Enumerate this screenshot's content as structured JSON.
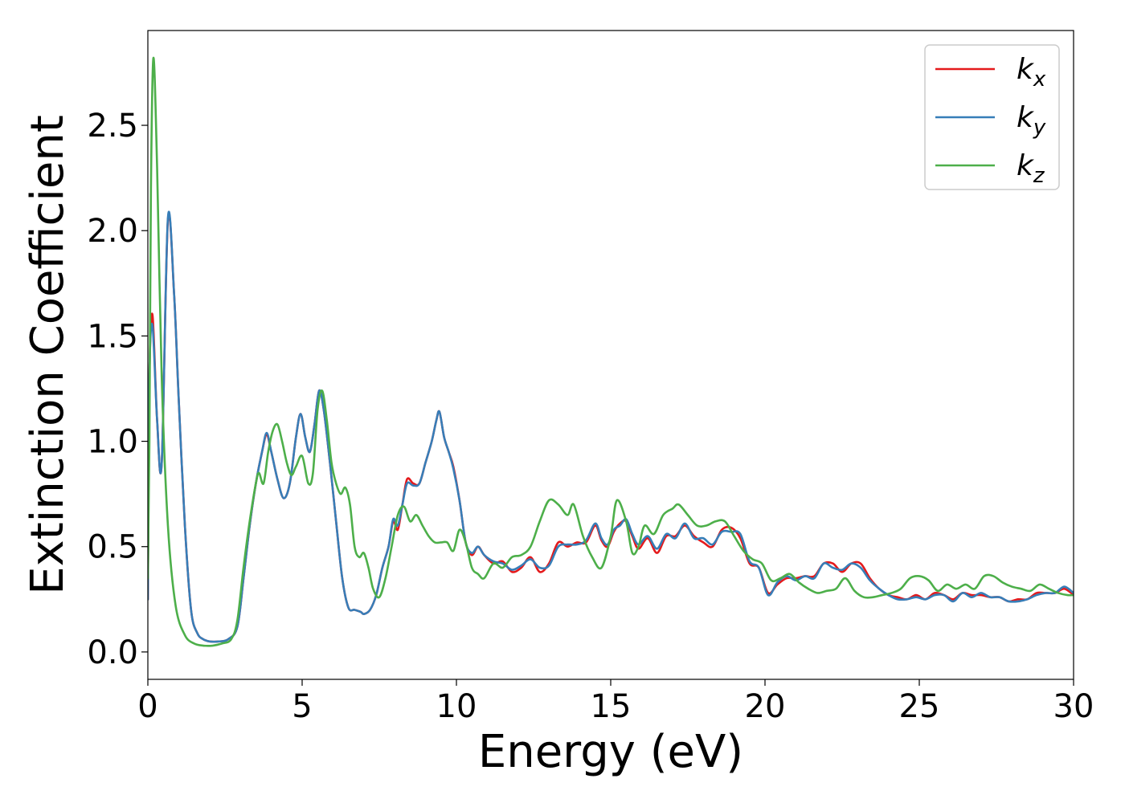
{
  "chart_data": {
    "type": "line",
    "title": "",
    "xlabel": "Energy (eV)",
    "ylabel": "Extinction Coefficient",
    "xlim": [
      0,
      30
    ],
    "ylim": [
      -0.13,
      2.95
    ],
    "xticks": [
      0,
      5,
      10,
      15,
      20,
      25,
      30
    ],
    "xtick_labels": [
      "0",
      "5",
      "10",
      "15",
      "20",
      "25",
      "30"
    ],
    "yticks": [
      0.0,
      0.5,
      1.0,
      1.5,
      2.0,
      2.5
    ],
    "ytick_labels": [
      "0.0",
      "0.5",
      "1.0",
      "1.5",
      "2.0",
      "2.5"
    ],
    "grid": false,
    "legend_position": "top-right",
    "series": [
      {
        "name": "k_x",
        "label_main": "k",
        "label_sub": "x",
        "color": "#e41a1c",
        "x": [
          0,
          0.05,
          0.15,
          0.3,
          0.45,
          0.65,
          0.85,
          1.0,
          1.2,
          1.4,
          1.6,
          1.8,
          2.0,
          2.3,
          2.6,
          2.9,
          3.1,
          3.3,
          3.5,
          3.7,
          3.85,
          4.0,
          4.2,
          4.4,
          4.6,
          4.8,
          4.95,
          5.1,
          5.25,
          5.4,
          5.55,
          5.7,
          5.9,
          6.1,
          6.3,
          6.5,
          6.7,
          6.9,
          7.0,
          7.2,
          7.4,
          7.6,
          7.8,
          7.95,
          8.1,
          8.25,
          8.4,
          8.6,
          8.8,
          9.0,
          9.2,
          9.35,
          9.45,
          9.6,
          9.75,
          9.9,
          10.1,
          10.3,
          10.5,
          10.7,
          10.9,
          11.2,
          11.5,
          11.8,
          12.1,
          12.4,
          12.7,
          13.0,
          13.3,
          13.6,
          13.9,
          14.2,
          14.5,
          14.7,
          14.9,
          15.1,
          15.3,
          15.5,
          15.7,
          15.9,
          16.2,
          16.5,
          16.8,
          17.1,
          17.4,
          17.7,
          18.0,
          18.3,
          18.6,
          18.9,
          19.2,
          19.5,
          19.8,
          20.1,
          20.4,
          20.7,
          21.0,
          21.3,
          21.6,
          21.9,
          22.2,
          22.5,
          22.8,
          23.1,
          23.4,
          23.7,
          24.0,
          24.3,
          24.6,
          24.9,
          25.2,
          25.5,
          25.8,
          26.1,
          26.4,
          26.7,
          27.0,
          27.3,
          27.6,
          27.9,
          28.2,
          28.5,
          28.8,
          29.1,
          29.4,
          29.7,
          30.0
        ],
        "y": [
          0.25,
          1.3,
          1.6,
          1.1,
          0.9,
          2.05,
          1.7,
          1.2,
          0.6,
          0.2,
          0.09,
          0.06,
          0.05,
          0.05,
          0.06,
          0.12,
          0.35,
          0.6,
          0.8,
          0.95,
          1.03,
          0.95,
          0.82,
          0.73,
          0.8,
          1.02,
          1.13,
          1.02,
          0.95,
          1.08,
          1.24,
          1.15,
          0.9,
          0.62,
          0.35,
          0.21,
          0.2,
          0.19,
          0.18,
          0.2,
          0.27,
          0.4,
          0.5,
          0.62,
          0.58,
          0.7,
          0.82,
          0.8,
          0.8,
          0.9,
          1.0,
          1.1,
          1.14,
          1.02,
          0.95,
          0.88,
          0.72,
          0.52,
          0.46,
          0.5,
          0.46,
          0.42,
          0.43,
          0.38,
          0.4,
          0.45,
          0.38,
          0.42,
          0.52,
          0.5,
          0.52,
          0.52,
          0.6,
          0.53,
          0.5,
          0.57,
          0.61,
          0.62,
          0.55,
          0.49,
          0.54,
          0.47,
          0.55,
          0.55,
          0.6,
          0.55,
          0.52,
          0.5,
          0.58,
          0.59,
          0.54,
          0.42,
          0.4,
          0.28,
          0.32,
          0.35,
          0.35,
          0.36,
          0.36,
          0.42,
          0.42,
          0.38,
          0.42,
          0.42,
          0.35,
          0.3,
          0.27,
          0.26,
          0.25,
          0.27,
          0.25,
          0.28,
          0.27,
          0.25,
          0.28,
          0.27,
          0.27,
          0.26,
          0.26,
          0.24,
          0.25,
          0.25,
          0.28,
          0.28,
          0.28,
          0.3,
          0.27
        ]
      },
      {
        "name": "k_y",
        "label_main": "k",
        "label_sub": "y",
        "color": "#377eb8",
        "x": [
          0,
          0.05,
          0.15,
          0.3,
          0.45,
          0.65,
          0.85,
          1.0,
          1.2,
          1.4,
          1.6,
          1.8,
          2.0,
          2.3,
          2.6,
          2.9,
          3.1,
          3.3,
          3.5,
          3.7,
          3.85,
          4.0,
          4.2,
          4.4,
          4.6,
          4.8,
          4.95,
          5.1,
          5.25,
          5.4,
          5.55,
          5.7,
          5.9,
          6.1,
          6.3,
          6.5,
          6.7,
          6.9,
          7.0,
          7.2,
          7.4,
          7.6,
          7.8,
          7.95,
          8.1,
          8.25,
          8.4,
          8.6,
          8.8,
          9.0,
          9.2,
          9.35,
          9.45,
          9.6,
          9.75,
          9.9,
          10.1,
          10.3,
          10.5,
          10.7,
          10.9,
          11.2,
          11.5,
          11.8,
          12.1,
          12.4,
          12.7,
          13.0,
          13.3,
          13.6,
          13.9,
          14.2,
          14.5,
          14.7,
          14.9,
          15.1,
          15.3,
          15.5,
          15.7,
          15.9,
          16.2,
          16.5,
          16.8,
          17.1,
          17.4,
          17.7,
          18.0,
          18.3,
          18.6,
          18.9,
          19.2,
          19.5,
          19.8,
          20.1,
          20.4,
          20.7,
          21.0,
          21.3,
          21.6,
          21.9,
          22.2,
          22.5,
          22.8,
          23.1,
          23.4,
          23.7,
          24.0,
          24.3,
          24.6,
          24.9,
          25.2,
          25.5,
          25.8,
          26.1,
          26.4,
          26.7,
          27.0,
          27.3,
          27.6,
          27.9,
          28.2,
          28.5,
          28.8,
          29.1,
          29.4,
          29.7,
          30.0
        ],
        "y": [
          0.25,
          1.3,
          1.55,
          1.1,
          0.9,
          2.06,
          1.7,
          1.2,
          0.6,
          0.2,
          0.09,
          0.06,
          0.05,
          0.05,
          0.06,
          0.12,
          0.35,
          0.6,
          0.8,
          0.95,
          1.04,
          0.95,
          0.82,
          0.73,
          0.8,
          1.02,
          1.13,
          1.02,
          0.95,
          1.08,
          1.24,
          1.15,
          0.9,
          0.62,
          0.35,
          0.21,
          0.2,
          0.19,
          0.18,
          0.2,
          0.27,
          0.4,
          0.5,
          0.63,
          0.6,
          0.7,
          0.8,
          0.79,
          0.8,
          0.9,
          1.0,
          1.1,
          1.14,
          1.02,
          0.95,
          0.87,
          0.72,
          0.52,
          0.47,
          0.5,
          0.46,
          0.43,
          0.42,
          0.39,
          0.41,
          0.44,
          0.4,
          0.41,
          0.5,
          0.51,
          0.51,
          0.53,
          0.61,
          0.54,
          0.51,
          0.58,
          0.6,
          0.63,
          0.56,
          0.51,
          0.55,
          0.49,
          0.56,
          0.54,
          0.61,
          0.54,
          0.54,
          0.51,
          0.57,
          0.57,
          0.56,
          0.43,
          0.4,
          0.27,
          0.33,
          0.36,
          0.34,
          0.36,
          0.35,
          0.42,
          0.4,
          0.39,
          0.42,
          0.4,
          0.34,
          0.3,
          0.27,
          0.25,
          0.25,
          0.26,
          0.25,
          0.27,
          0.27,
          0.24,
          0.28,
          0.26,
          0.28,
          0.26,
          0.26,
          0.24,
          0.24,
          0.25,
          0.27,
          0.28,
          0.28,
          0.31,
          0.28
        ]
      },
      {
        "name": "k_z",
        "label_main": "k",
        "label_sub": "z",
        "color": "#4daf4a",
        "x": [
          0,
          0.05,
          0.1,
          0.18,
          0.3,
          0.45,
          0.65,
          0.9,
          1.2,
          1.5,
          1.8,
          2.1,
          2.4,
          2.7,
          2.9,
          3.1,
          3.3,
          3.5,
          3.6,
          3.75,
          3.9,
          4.05,
          4.2,
          4.35,
          4.5,
          4.65,
          4.8,
          5.0,
          5.2,
          5.35,
          5.5,
          5.65,
          5.8,
          5.95,
          6.1,
          6.25,
          6.4,
          6.55,
          6.7,
          6.85,
          7.0,
          7.15,
          7.3,
          7.5,
          7.7,
          7.9,
          8.1,
          8.3,
          8.5,
          8.7,
          8.9,
          9.1,
          9.3,
          9.5,
          9.7,
          9.9,
          10.1,
          10.3,
          10.5,
          10.7,
          10.9,
          11.2,
          11.5,
          11.8,
          12.1,
          12.4,
          12.7,
          13.0,
          13.3,
          13.6,
          13.8,
          14.1,
          14.4,
          14.7,
          15.0,
          15.2,
          15.5,
          15.7,
          15.9,
          16.1,
          16.4,
          16.7,
          17.0,
          17.2,
          17.5,
          17.8,
          18.1,
          18.4,
          18.7,
          19.0,
          19.3,
          19.6,
          19.9,
          20.2,
          20.5,
          20.8,
          21.1,
          21.4,
          21.7,
          22.0,
          22.3,
          22.6,
          22.9,
          23.2,
          23.5,
          23.8,
          24.1,
          24.4,
          24.7,
          25.0,
          25.3,
          25.6,
          25.9,
          26.2,
          26.5,
          26.8,
          27.1,
          27.4,
          27.7,
          28.0,
          28.3,
          28.6,
          28.9,
          29.2,
          29.5,
          29.8,
          30.0
        ],
        "y": [
          0.35,
          1.0,
          2.2,
          2.82,
          2.3,
          1.3,
          0.6,
          0.22,
          0.08,
          0.04,
          0.03,
          0.03,
          0.04,
          0.06,
          0.15,
          0.4,
          0.62,
          0.8,
          0.85,
          0.8,
          0.95,
          1.05,
          1.08,
          1.0,
          0.9,
          0.84,
          0.88,
          0.93,
          0.8,
          0.85,
          1.15,
          1.24,
          1.1,
          0.9,
          0.8,
          0.75,
          0.78,
          0.7,
          0.5,
          0.45,
          0.47,
          0.4,
          0.3,
          0.26,
          0.35,
          0.5,
          0.65,
          0.69,
          0.62,
          0.65,
          0.6,
          0.55,
          0.52,
          0.52,
          0.52,
          0.48,
          0.58,
          0.52,
          0.4,
          0.37,
          0.35,
          0.42,
          0.4,
          0.45,
          0.46,
          0.5,
          0.62,
          0.72,
          0.7,
          0.65,
          0.7,
          0.55,
          0.45,
          0.4,
          0.55,
          0.72,
          0.62,
          0.47,
          0.5,
          0.6,
          0.56,
          0.65,
          0.68,
          0.7,
          0.65,
          0.6,
          0.6,
          0.62,
          0.62,
          0.55,
          0.48,
          0.44,
          0.42,
          0.34,
          0.35,
          0.37,
          0.33,
          0.3,
          0.28,
          0.29,
          0.3,
          0.35,
          0.29,
          0.26,
          0.26,
          0.27,
          0.28,
          0.3,
          0.35,
          0.36,
          0.34,
          0.29,
          0.32,
          0.3,
          0.32,
          0.3,
          0.36,
          0.36,
          0.33,
          0.31,
          0.3,
          0.29,
          0.32,
          0.3,
          0.28,
          0.27,
          0.27
        ]
      }
    ]
  }
}
